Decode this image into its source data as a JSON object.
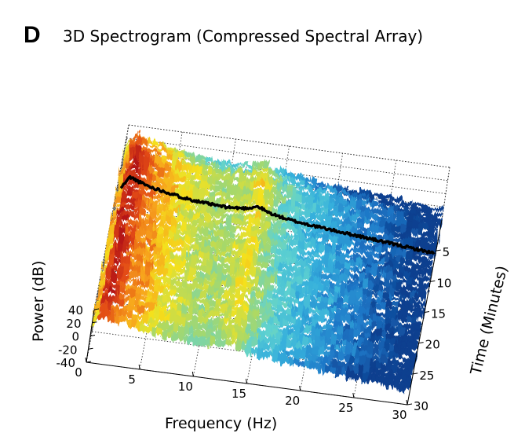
{
  "panel_letter": "D",
  "colors": {
    "colormap": [
      "#0b3f8f",
      "#1f78c8",
      "#36b0dc",
      "#5fd2d0",
      "#a7d86a",
      "#f4e21f",
      "#f7a21b",
      "#e24a17",
      "#b31414"
    ],
    "trace": "#000000"
  },
  "chart_data": {
    "type": "surface3d",
    "title": "3D Spectrogram (Compressed Spectral Array)",
    "xlabel": "Frequency (Hz)",
    "ylabel": "Time (Minutes)",
    "zlabel": "Power (dB)",
    "xlim": [
      0,
      30
    ],
    "ylim": [
      0,
      30
    ],
    "zlim": [
      -40,
      40
    ],
    "x_ticks": [
      "0",
      "5",
      "10",
      "15",
      "20",
      "25",
      "30"
    ],
    "y_ticks": [
      "5",
      "10",
      "15",
      "20",
      "25",
      "30"
    ],
    "z_ticks": [
      "40",
      "20",
      "0",
      "-20",
      "-40"
    ],
    "grid": true,
    "surface_profile": {
      "x": [
        0,
        0.5,
        1,
        1.5,
        2,
        3,
        4,
        5,
        6,
        7,
        8,
        9,
        10,
        11,
        12,
        12.5,
        13,
        13.5,
        14,
        15,
        16,
        18,
        20,
        22,
        24,
        26,
        28,
        30
      ],
      "z": [
        15,
        30,
        38,
        35,
        32,
        28,
        25,
        22,
        19,
        17,
        15,
        14,
        13,
        13.5,
        15,
        17,
        20,
        18,
        14,
        10,
        7,
        3,
        0,
        -3,
        -6,
        -9,
        -12,
        -15
      ]
    },
    "highlighted_time_min": 8,
    "trace_profile": {
      "x": [
        0,
        0.5,
        1,
        1.5,
        2,
        3,
        4,
        5,
        6,
        7,
        8,
        9,
        10,
        11,
        12,
        12.5,
        13,
        13.5,
        14,
        15,
        16,
        18,
        20,
        22,
        24,
        26,
        28,
        30
      ],
      "z": [
        10,
        25,
        38,
        35,
        32,
        27,
        24,
        21,
        18,
        16,
        14,
        13,
        12,
        12.5,
        14,
        16,
        19,
        17,
        13,
        9,
        6,
        2,
        -1,
        -4,
        -7,
        -10,
        -13,
        -16
      ]
    }
  }
}
